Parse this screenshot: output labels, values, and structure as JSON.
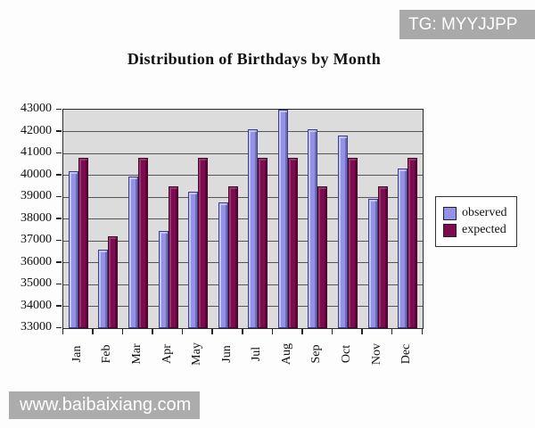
{
  "watermarks": {
    "top_right": "TG: MYYJJPP",
    "bottom_left": "www.baibaixiang.com"
  },
  "chart_data": {
    "type": "bar",
    "title": "Distribution of Birthdays by Month",
    "categories": [
      "Jan",
      "Feb",
      "Mar",
      "Apr",
      "May",
      "Jun",
      "Jul",
      "Aug",
      "Sep",
      "Oct",
      "Nov",
      "Dec"
    ],
    "series": [
      {
        "name": "observed",
        "values": [
          40200,
          36600,
          39950,
          37450,
          39250,
          38750,
          42100,
          43000,
          42100,
          41800,
          38900,
          40300
        ],
        "fill": "#9392e8",
        "border": "#3c3c8c"
      },
      {
        "name": "expected",
        "values": [
          40800,
          37200,
          40800,
          39500,
          40800,
          39500,
          40800,
          40800,
          39500,
          40800,
          39500,
          40800
        ],
        "fill": "#7e0b50",
        "border": "#45052c"
      }
    ],
    "ylim": [
      33000,
      43000
    ],
    "ytick_step": 1000,
    "yticks": [
      43000,
      42000,
      41000,
      40000,
      39000,
      38000,
      37000,
      36000,
      35000,
      34000,
      33000
    ],
    "grid": true,
    "legend_position": "right",
    "plot_bg": "#dcdcdc"
  }
}
